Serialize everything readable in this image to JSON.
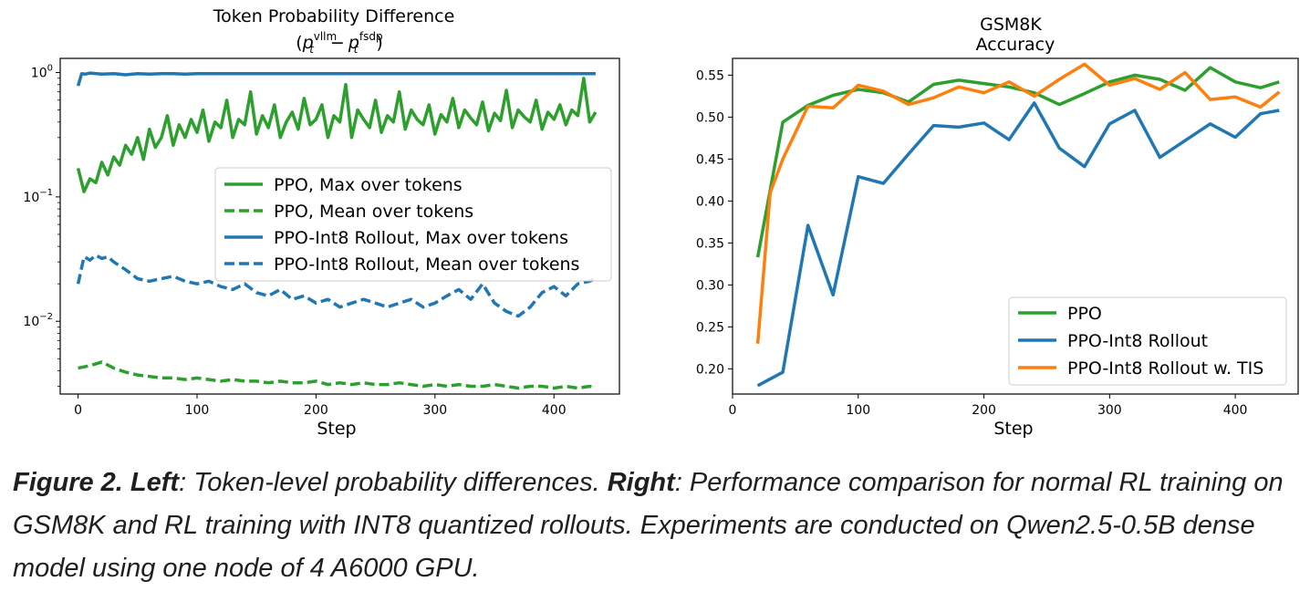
{
  "chart_data": [
    {
      "type": "line",
      "title": "Token Probability Difference",
      "subtitle": {
        "p1": "p",
        "sub1": "t",
        "sup1": "vllm",
        "minus": "−",
        "p2": "p",
        "sub2": "t",
        "sup2": "fsdp"
      },
      "xlabel": "Step",
      "ylabel": "",
      "yscale": "log",
      "xlim": [
        -15,
        455
      ],
      "ylim": [
        0.0026,
        1.3
      ],
      "xticks": [
        "0",
        "100",
        "200",
        "300",
        "400"
      ],
      "xtick_values": [
        0,
        100,
        200,
        300,
        400
      ],
      "yticks": [
        {
          "value": 1,
          "base": "10",
          "exp": "0"
        },
        {
          "value": 0.1,
          "base": "10",
          "exp": "−1"
        },
        {
          "value": 0.01,
          "base": "10",
          "exp": "−2"
        }
      ],
      "legend_position": "center-right",
      "series": [
        {
          "name": "PPO, Max over tokens",
          "color": "#2ca02c",
          "style": "solid",
          "x": [
            0,
            5,
            10,
            15,
            20,
            25,
            30,
            35,
            40,
            45,
            50,
            55,
            60,
            65,
            70,
            75,
            80,
            85,
            90,
            95,
            100,
            105,
            110,
            115,
            120,
            125,
            130,
            135,
            140,
            145,
            150,
            155,
            160,
            165,
            170,
            175,
            180,
            185,
            190,
            195,
            200,
            205,
            210,
            215,
            220,
            225,
            230,
            235,
            240,
            245,
            250,
            255,
            260,
            265,
            270,
            275,
            280,
            285,
            290,
            295,
            300,
            305,
            310,
            315,
            320,
            325,
            330,
            335,
            340,
            345,
            350,
            355,
            360,
            365,
            370,
            375,
            380,
            385,
            390,
            395,
            400,
            405,
            410,
            415,
            420,
            425,
            430,
            435
          ],
          "y": [
            0.17,
            0.11,
            0.14,
            0.13,
            0.19,
            0.15,
            0.21,
            0.18,
            0.26,
            0.22,
            0.3,
            0.2,
            0.35,
            0.25,
            0.3,
            0.45,
            0.26,
            0.38,
            0.3,
            0.42,
            0.33,
            0.5,
            0.28,
            0.4,
            0.36,
            0.6,
            0.3,
            0.42,
            0.38,
            0.7,
            0.32,
            0.45,
            0.36,
            0.55,
            0.3,
            0.4,
            0.48,
            0.35,
            0.62,
            0.38,
            0.42,
            0.55,
            0.3,
            0.45,
            0.4,
            0.8,
            0.3,
            0.5,
            0.42,
            0.36,
            0.6,
            0.33,
            0.45,
            0.4,
            0.7,
            0.35,
            0.5,
            0.42,
            0.38,
            0.55,
            0.32,
            0.46,
            0.4,
            0.62,
            0.36,
            0.5,
            0.43,
            0.38,
            0.58,
            0.34,
            0.47,
            0.41,
            0.72,
            0.36,
            0.5,
            0.44,
            0.4,
            0.6,
            0.35,
            0.48,
            0.42,
            0.55,
            0.38,
            0.5,
            0.45,
            0.9,
            0.4,
            0.48
          ]
        },
        {
          "name": "PPO, Mean over tokens",
          "color": "#2ca02c",
          "style": "dashed",
          "x": [
            0,
            10,
            20,
            30,
            40,
            50,
            60,
            70,
            80,
            90,
            100,
            110,
            120,
            130,
            140,
            150,
            160,
            170,
            180,
            190,
            200,
            210,
            220,
            230,
            240,
            250,
            260,
            270,
            280,
            290,
            300,
            310,
            320,
            330,
            340,
            350,
            360,
            370,
            380,
            390,
            400,
            410,
            420,
            430,
            435
          ],
          "y": [
            0.0042,
            0.0044,
            0.0047,
            0.0042,
            0.0039,
            0.0037,
            0.0036,
            0.0035,
            0.0035,
            0.0034,
            0.0035,
            0.0034,
            0.0033,
            0.0034,
            0.0033,
            0.0033,
            0.0032,
            0.0033,
            0.0032,
            0.0032,
            0.0033,
            0.0031,
            0.0032,
            0.0031,
            0.0032,
            0.0031,
            0.0031,
            0.0032,
            0.0031,
            0.003,
            0.0031,
            0.003,
            0.0031,
            0.003,
            0.003,
            0.0031,
            0.003,
            0.0029,
            0.003,
            0.003,
            0.0029,
            0.003,
            0.0029,
            0.003,
            0.0029
          ]
        },
        {
          "name": "PPO-Int8 Rollout, Max over tokens",
          "color": "#1f77b4",
          "style": "solid",
          "x": [
            0,
            3,
            6,
            10,
            20,
            30,
            40,
            50,
            60,
            70,
            80,
            90,
            100,
            120,
            140,
            160,
            180,
            200,
            220,
            240,
            260,
            280,
            300,
            320,
            340,
            360,
            380,
            400,
            420,
            435
          ],
          "y": [
            0.78,
            0.98,
            0.97,
            0.99,
            0.97,
            0.98,
            0.96,
            0.98,
            0.97,
            0.98,
            0.98,
            0.97,
            0.98,
            0.98,
            0.98,
            0.98,
            0.98,
            0.98,
            0.98,
            0.98,
            0.98,
            0.98,
            0.98,
            0.98,
            0.98,
            0.98,
            0.98,
            0.98,
            0.98,
            0.98
          ]
        },
        {
          "name": "PPO-Int8 Rollout, Mean over tokens",
          "color": "#1f77b4",
          "style": "dashed",
          "x": [
            0,
            5,
            10,
            15,
            20,
            25,
            30,
            40,
            50,
            60,
            70,
            80,
            90,
            100,
            110,
            120,
            130,
            140,
            150,
            160,
            170,
            180,
            190,
            200,
            210,
            220,
            230,
            240,
            250,
            260,
            270,
            280,
            290,
            300,
            310,
            320,
            330,
            340,
            350,
            360,
            370,
            380,
            390,
            400,
            410,
            420,
            430,
            435
          ],
          "y": [
            0.02,
            0.033,
            0.031,
            0.034,
            0.032,
            0.033,
            0.03,
            0.026,
            0.022,
            0.021,
            0.022,
            0.023,
            0.021,
            0.02,
            0.021,
            0.019,
            0.018,
            0.02,
            0.017,
            0.016,
            0.018,
            0.015,
            0.016,
            0.014,
            0.015,
            0.013,
            0.014,
            0.015,
            0.014,
            0.013,
            0.014,
            0.015,
            0.013,
            0.014,
            0.016,
            0.018,
            0.015,
            0.02,
            0.014,
            0.012,
            0.011,
            0.013,
            0.017,
            0.019,
            0.016,
            0.02,
            0.021,
            0.022
          ]
        }
      ]
    },
    {
      "type": "line",
      "title": "GSM8K",
      "subtitle": "Accuracy",
      "xlabel": "Step",
      "ylabel": "",
      "xlim": [
        0,
        450
      ],
      "ylim": [
        0.17,
        0.57
      ],
      "xticks": [
        "0",
        "100",
        "200",
        "300",
        "400"
      ],
      "xtick_values": [
        0,
        100,
        200,
        300,
        400
      ],
      "yticks": [
        "0.20",
        "0.25",
        "0.30",
        "0.35",
        "0.40",
        "0.45",
        "0.50",
        "0.55"
      ],
      "ytick_values": [
        0.2,
        0.25,
        0.3,
        0.35,
        0.4,
        0.45,
        0.5,
        0.55
      ],
      "legend_position": "lower-right",
      "series": [
        {
          "name": "PPO",
          "color": "#2ca02c",
          "style": "solid",
          "x": [
            20,
            40,
            60,
            80,
            100,
            120,
            140,
            160,
            180,
            200,
            220,
            240,
            260,
            280,
            300,
            320,
            340,
            360,
            380,
            400,
            420,
            435
          ],
          "y": [
            0.333,
            0.494,
            0.514,
            0.526,
            0.533,
            0.529,
            0.518,
            0.539,
            0.544,
            0.54,
            0.536,
            0.529,
            0.515,
            0.528,
            0.542,
            0.55,
            0.545,
            0.532,
            0.559,
            0.542,
            0.535,
            0.542
          ]
        },
        {
          "name": "PPO-Int8 Rollout",
          "color": "#1f77b4",
          "style": "solid",
          "x": [
            20,
            40,
            60,
            80,
            100,
            120,
            140,
            160,
            180,
            200,
            220,
            240,
            260,
            280,
            300,
            320,
            340,
            360,
            380,
            400,
            420,
            435
          ],
          "y": [
            0.18,
            0.196,
            0.371,
            0.288,
            0.429,
            0.421,
            0.456,
            0.49,
            0.488,
            0.493,
            0.473,
            0.517,
            0.463,
            0.441,
            0.492,
            0.508,
            0.452,
            0.472,
            0.492,
            0.476,
            0.504,
            0.508
          ]
        },
        {
          "name": "PPO-Int8 Rollout w. TIS",
          "color": "#ff7f0e",
          "style": "solid",
          "x": [
            20,
            30,
            40,
            60,
            80,
            100,
            120,
            140,
            160,
            180,
            200,
            220,
            240,
            260,
            280,
            300,
            320,
            340,
            360,
            380,
            400,
            420,
            435
          ],
          "y": [
            0.23,
            0.41,
            0.45,
            0.513,
            0.511,
            0.538,
            0.531,
            0.515,
            0.523,
            0.536,
            0.529,
            0.542,
            0.525,
            0.545,
            0.563,
            0.538,
            0.546,
            0.533,
            0.553,
            0.521,
            0.524,
            0.512,
            0.53
          ]
        }
      ]
    }
  ],
  "caption": {
    "figure_label": "Figure 2.",
    "left_label": "Left",
    "left_text": ": Token-level probability differences. ",
    "right_label": "Right",
    "right_text": ": Performance comparison for normal RL training on GSM8K and RL training with INT8 quantized rollouts. Experiments are conducted on Qwen2.5-0.5B dense model using one node of 4 A6000 GPU."
  }
}
